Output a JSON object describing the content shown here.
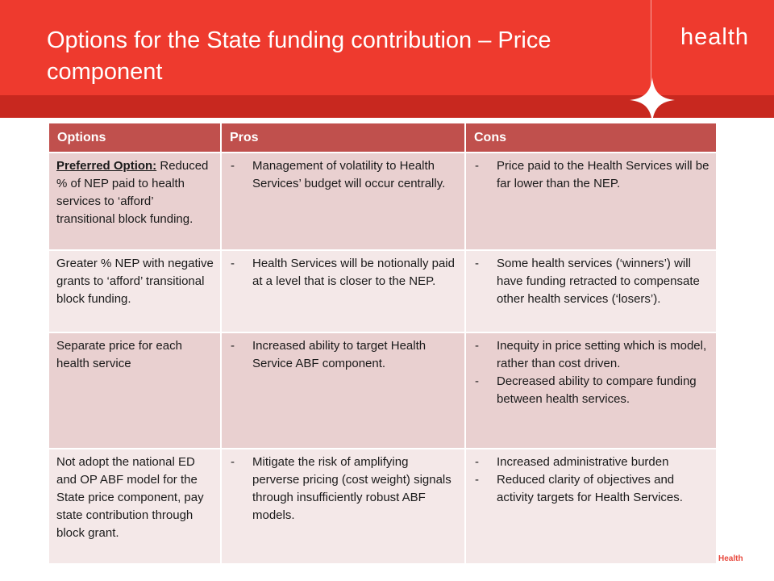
{
  "slide": {
    "title": "Options for the State funding contribution – Price component",
    "brand": "health",
    "footer_brand": "Health"
  },
  "table": {
    "headers": {
      "options": "Options",
      "pros": "Pros",
      "cons": "Cons"
    },
    "bullet_marker": "-",
    "rows": [
      {
        "label": "Preferred Option:",
        "option": "Reduced % of NEP paid to health services to ‘afford’ transitional block funding.",
        "pros": [
          "Management of volatility to Health Services’ budget will occur centrally."
        ],
        "cons": [
          "Price paid to the Health Services will be far lower than the NEP."
        ]
      },
      {
        "option": "Greater % NEP with negative grants to ‘afford’ transitional block funding.",
        "pros": [
          "Health Services will be notionally paid at a level that is closer to the NEP."
        ],
        "cons": [
          "Some health services (‘winners’) will have funding retracted to compensate other health services (‘losers’)."
        ]
      },
      {
        "option": "Separate price for each health service",
        "pros": [
          "Increased ability to target Health Service ABF component."
        ],
        "cons": [
          "Inequity in price setting which is model, rather than cost driven.",
          "Decreased ability to compare funding between health services."
        ]
      },
      {
        "option": "Not adopt the national ED and OP ABF model for the State price component, pay state contribution through block grant.",
        "pros": [
          "Mitigate the risk of amplifying perverse pricing (cost weight) signals through insufficiently robust ABF models."
        ],
        "cons": [
          "Increased administrative burden",
          "Reduced clarity of objectives and activity targets for Health Services."
        ]
      }
    ]
  },
  "colors": {
    "header_red": "#ee3a2e",
    "header_band": "#c8281f",
    "table_header": "#c0504d",
    "row_odd": "#e9d0d0",
    "row_even": "#f4e8e8"
  }
}
